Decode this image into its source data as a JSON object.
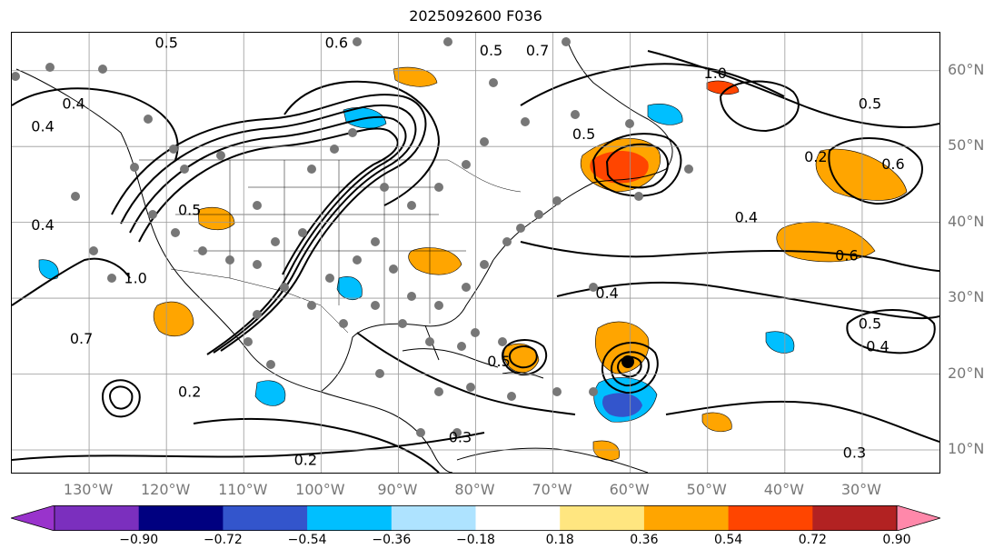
{
  "title": "2025092600 F036",
  "lat_labels": [
    "60°N",
    "50°N",
    "40°N",
    "30°N",
    "20°N",
    "10°N"
  ],
  "lon_labels": [
    "130°W",
    "120°W",
    "110°W",
    "100°W",
    "90°W",
    "80°W",
    "70°W",
    "60°W",
    "50°W",
    "40°W",
    "30°W"
  ],
  "contour_labels": [
    {
      "text": "0.5",
      "lon": -120,
      "lat": 63
    },
    {
      "text": "0.6",
      "lon": -98,
      "lat": 63
    },
    {
      "text": "0.5",
      "lon": -78,
      "lat": 62
    },
    {
      "text": "0.7",
      "lon": -72,
      "lat": 62
    },
    {
      "text": "1.0",
      "lon": -49,
      "lat": 59
    },
    {
      "text": "0.5",
      "lon": -29,
      "lat": 55
    },
    {
      "text": "0.4",
      "lon": -132,
      "lat": 55
    },
    {
      "text": "0.4",
      "lon": -136,
      "lat": 52
    },
    {
      "text": "0.5",
      "lon": -66,
      "lat": 51
    },
    {
      "text": "0.2",
      "lon": -36,
      "lat": 48
    },
    {
      "text": "0.6",
      "lon": -26,
      "lat": 47
    },
    {
      "text": "0.5",
      "lon": -117,
      "lat": 41
    },
    {
      "text": "0.4",
      "lon": -45,
      "lat": 40
    },
    {
      "text": "0.4",
      "lon": -136,
      "lat": 39
    },
    {
      "text": "0.6",
      "lon": -32,
      "lat": 35
    },
    {
      "text": "1.0",
      "lon": -124,
      "lat": 32
    },
    {
      "text": "0.4",
      "lon": -63,
      "lat": 30
    },
    {
      "text": "0.5",
      "lon": -29,
      "lat": 26
    },
    {
      "text": "0.4",
      "lon": -28,
      "lat": 23
    },
    {
      "text": "0.7",
      "lon": -131,
      "lat": 24
    },
    {
      "text": "0.2",
      "lon": -117,
      "lat": 17
    },
    {
      "text": "0.5",
      "lon": -77,
      "lat": 21
    },
    {
      "text": "0.3",
      "lon": -82,
      "lat": 11
    },
    {
      "text": "0.2",
      "lon": -102,
      "lat": 8
    },
    {
      "text": "0.3",
      "lon": -31,
      "lat": 9
    }
  ],
  "colorbar": {
    "colors": [
      "#9933cc",
      "#7b2fbe",
      "#000080",
      "#3355cc",
      "#00bfff",
      "#aee3ff",
      "#ffffff",
      "#ffe680",
      "#ffa500",
      "#ff4500",
      "#b22222",
      "#ff88aa"
    ],
    "ticks": [
      "−0.90",
      "−0.72",
      "−0.54",
      "−0.36",
      "−0.18",
      "0.18",
      "0.36",
      "0.54",
      "0.72",
      "0.90"
    ]
  },
  "colors": {
    "land_outline": "#000000",
    "grid": "#999999",
    "point": "#777777"
  }
}
